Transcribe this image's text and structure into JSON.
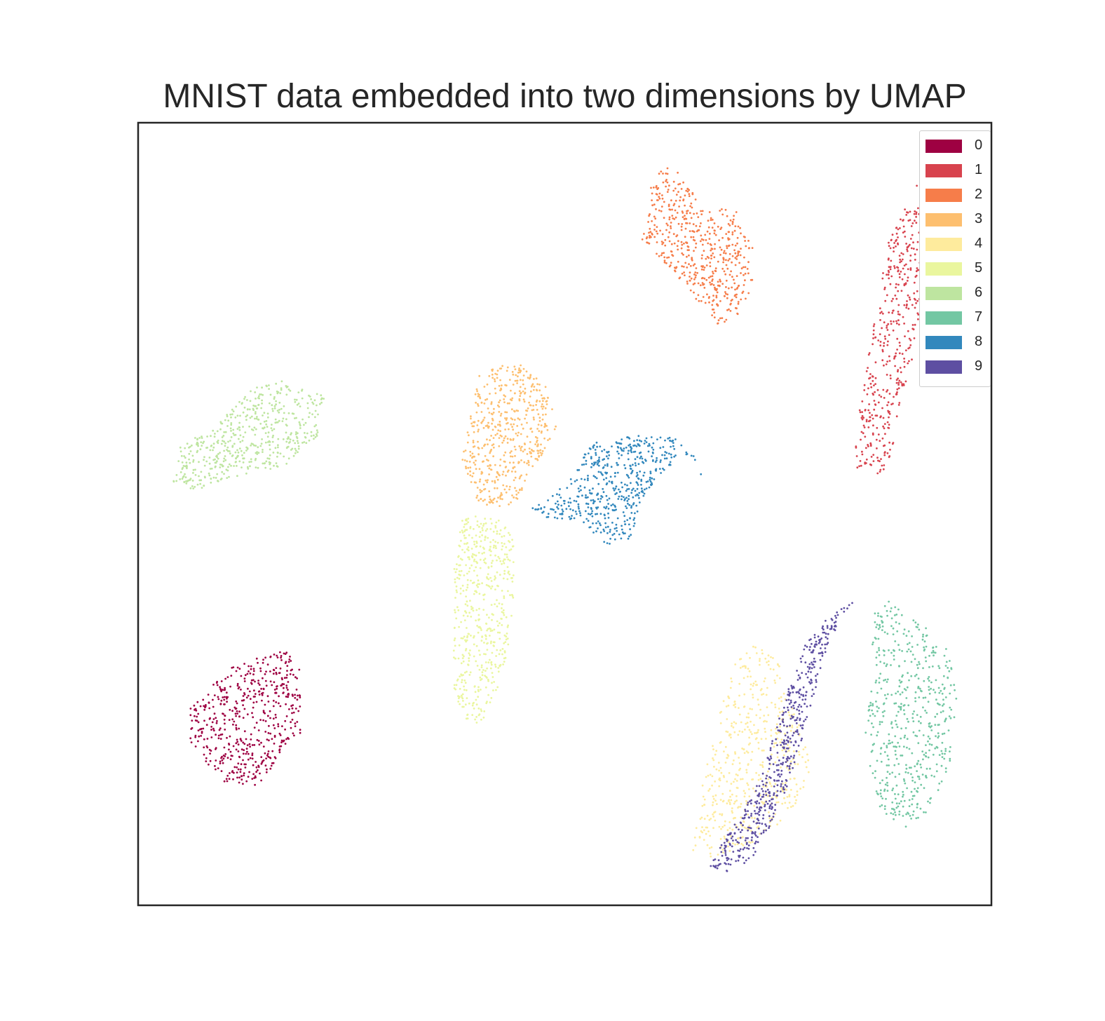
{
  "chart_data": {
    "type": "scatter",
    "title": "MNIST data embedded into two dimensions by UMAP",
    "xlabel": "",
    "ylabel": "",
    "x_ticks_visible": false,
    "y_ticks_visible": false,
    "grid": false,
    "xlim": [
      0,
      100
    ],
    "ylim": [
      0,
      100
    ],
    "legend": {
      "placement": "top-right",
      "entries": [
        {
          "label": "0",
          "color": "#9e0142"
        },
        {
          "label": "1",
          "color": "#d8434e"
        },
        {
          "label": "2",
          "color": "#f67d4a"
        },
        {
          "label": "3",
          "color": "#fdbf6f"
        },
        {
          "label": "4",
          "color": "#feeb9d"
        },
        {
          "label": "5",
          "color": "#eaf69e"
        },
        {
          "label": "6",
          "color": "#bee5a0"
        },
        {
          "label": "7",
          "color": "#73c7a3"
        },
        {
          "label": "8",
          "color": "#3288bd"
        },
        {
          "label": "9",
          "color": "#5e4fa2"
        }
      ]
    },
    "series": [
      {
        "name": "0",
        "color": "#9e0142",
        "outline": [
          [
            6,
            25
          ],
          [
            10,
            30
          ],
          [
            17,
            33
          ],
          [
            19,
            30
          ],
          [
            19,
            22
          ],
          [
            14,
            15
          ],
          [
            9,
            16
          ],
          [
            6,
            21
          ]
        ]
      },
      {
        "name": "1",
        "color": "#d8434e",
        "outline": [
          [
            84,
            55
          ],
          [
            84,
            60
          ],
          [
            85,
            66
          ],
          [
            86,
            73
          ],
          [
            87,
            79
          ],
          [
            88,
            85
          ],
          [
            90,
            90
          ],
          [
            92,
            94
          ],
          [
            95,
            95
          ],
          [
            96,
            92
          ],
          [
            94,
            85
          ],
          [
            92,
            79
          ],
          [
            91,
            71
          ],
          [
            89,
            63
          ],
          [
            88,
            55
          ]
        ]
      },
      {
        "name": "2",
        "color": "#f67d4a",
        "outline": [
          [
            59,
            85
          ],
          [
            60,
            89
          ],
          [
            60,
            93
          ],
          [
            63,
            95
          ],
          [
            66,
            89
          ],
          [
            70,
            89
          ],
          [
            72,
            84
          ],
          [
            72,
            80
          ],
          [
            71,
            76
          ],
          [
            68,
            74
          ],
          [
            65,
            78
          ],
          [
            61,
            83
          ]
        ]
      },
      {
        "name": "3",
        "color": "#fdbf6f",
        "outline": [
          [
            38,
            57
          ],
          [
            39,
            63
          ],
          [
            40,
            68
          ],
          [
            42,
            69
          ],
          [
            45,
            69
          ],
          [
            48,
            66
          ],
          [
            49,
            61
          ],
          [
            47,
            57
          ],
          [
            44,
            51
          ],
          [
            40,
            51
          ]
        ]
      },
      {
        "name": "4",
        "color": "#feeb9d",
        "outline": [
          [
            65,
            7
          ],
          [
            66,
            15
          ],
          [
            68,
            24
          ],
          [
            70,
            31
          ],
          [
            73,
            34
          ],
          [
            75,
            31
          ],
          [
            77,
            25
          ],
          [
            79,
            18
          ],
          [
            77,
            12
          ],
          [
            72,
            8
          ],
          [
            67,
            6
          ]
        ]
      },
      {
        "name": "5",
        "color": "#eaf69e",
        "outline": [
          [
            37,
            26
          ],
          [
            37,
            33
          ],
          [
            37,
            43
          ],
          [
            38,
            50
          ],
          [
            42,
            50
          ],
          [
            44,
            47
          ],
          [
            44,
            38
          ],
          [
            43,
            30
          ],
          [
            41,
            24
          ],
          [
            39,
            23
          ]
        ]
      },
      {
        "name": "6",
        "color": "#bee5a0",
        "outline": [
          [
            4,
            54
          ],
          [
            5,
            59
          ],
          [
            9,
            61
          ],
          [
            13,
            66
          ],
          [
            17,
            67
          ],
          [
            22,
            65
          ],
          [
            21,
            60
          ],
          [
            17,
            56
          ],
          [
            12,
            55
          ],
          [
            7,
            53
          ]
        ]
      },
      {
        "name": "7",
        "color": "#73c7a3",
        "outline": [
          [
            85,
            21
          ],
          [
            86,
            29
          ],
          [
            86,
            37
          ],
          [
            88,
            39
          ],
          [
            92,
            36
          ],
          [
            95,
            33
          ],
          [
            96,
            26
          ],
          [
            95,
            17
          ],
          [
            92,
            11
          ],
          [
            90,
            10
          ],
          [
            87,
            12
          ]
        ]
      },
      {
        "name": "8",
        "color": "#3288bd",
        "outline": [
          [
            45,
            50
          ],
          [
            52,
            49
          ],
          [
            55,
            46
          ],
          [
            58,
            47
          ],
          [
            59,
            52
          ],
          [
            62,
            56
          ],
          [
            65,
            58
          ],
          [
            66,
            55
          ],
          [
            63,
            60
          ],
          [
            57,
            60
          ],
          [
            53,
            59
          ],
          [
            51,
            55
          ],
          [
            48,
            52
          ]
        ]
      },
      {
        "name": "9",
        "color": "#5e4fa2",
        "outline": [
          [
            69,
            4
          ],
          [
            72,
            6
          ],
          [
            74,
            10
          ],
          [
            76,
            15
          ],
          [
            78,
            22
          ],
          [
            80,
            30
          ],
          [
            82,
            36
          ],
          [
            84,
            39
          ],
          [
            81,
            37
          ],
          [
            78,
            33
          ],
          [
            76,
            27
          ],
          [
            74,
            20
          ],
          [
            72,
            14
          ],
          [
            69,
            9
          ],
          [
            67,
            5
          ]
        ]
      }
    ]
  }
}
